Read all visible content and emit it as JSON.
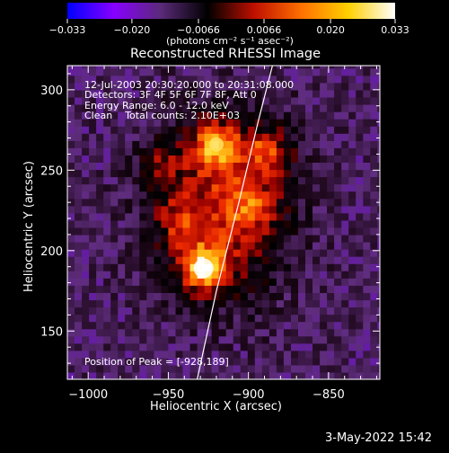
{
  "chart_data": {
    "type": "heatmap",
    "title": "Reconstructed RHESSI Image",
    "xlabel": "Heliocentric X (arcsec)",
    "ylabel": "Heliocentric Y (arcsec)",
    "xlim": [
      -1013,
      -818
    ],
    "ylim": [
      120,
      315
    ],
    "xticks": [
      -1000,
      -950,
      -900,
      -850
    ],
    "yticks": [
      150,
      200,
      250,
      300
    ],
    "colorbar": {
      "range": [
        -0.033,
        0.033
      ],
      "ticks": [
        "−0.033",
        "−0.020",
        "−0.0066",
        "0.0066",
        "0.020",
        "0.033"
      ],
      "tick_values": [
        -0.033,
        -0.02,
        -0.0066,
        0.0066,
        0.02,
        0.033
      ],
      "unit_label": "(photons cm⁻² s⁻¹ asec⁻²)",
      "colors": [
        "#0000ff",
        "#8800ff",
        "#5a2a78",
        "#000000",
        "#c01000",
        "#ff7000",
        "#ffd000",
        "#ffffff"
      ]
    },
    "info_lines": [
      "12-Jul-2003 20:30:20.000 to 20:31:08.000",
      "Detectors: 3F 4F 5F 6F 7F 8F, Att 0",
      "Energy Range: 6.0 - 12.0 keV",
      "Clean    Total counts: 2.10E+03"
    ],
    "peak_label": "Position of Peak = [-928,189]",
    "peak": [
      -928,
      189
    ],
    "sources": [
      {
        "x": -928,
        "y": 189,
        "value": 0.033
      },
      {
        "x": -920,
        "y": 266,
        "value": 0.026
      },
      {
        "x": -888,
        "y": 262,
        "value": 0.018
      },
      {
        "x": -955,
        "y": 255,
        "value": 0.012
      },
      {
        "x": -945,
        "y": 218,
        "value": 0.012
      },
      {
        "x": -898,
        "y": 228,
        "value": 0.011
      }
    ],
    "limb_curve": [
      [
        -932,
        120
      ],
      [
        -920,
        175
      ],
      [
        -906,
        230
      ],
      [
        -894,
        280
      ],
      [
        -885,
        315
      ]
    ],
    "footer": "3-May-2022 15:42"
  }
}
